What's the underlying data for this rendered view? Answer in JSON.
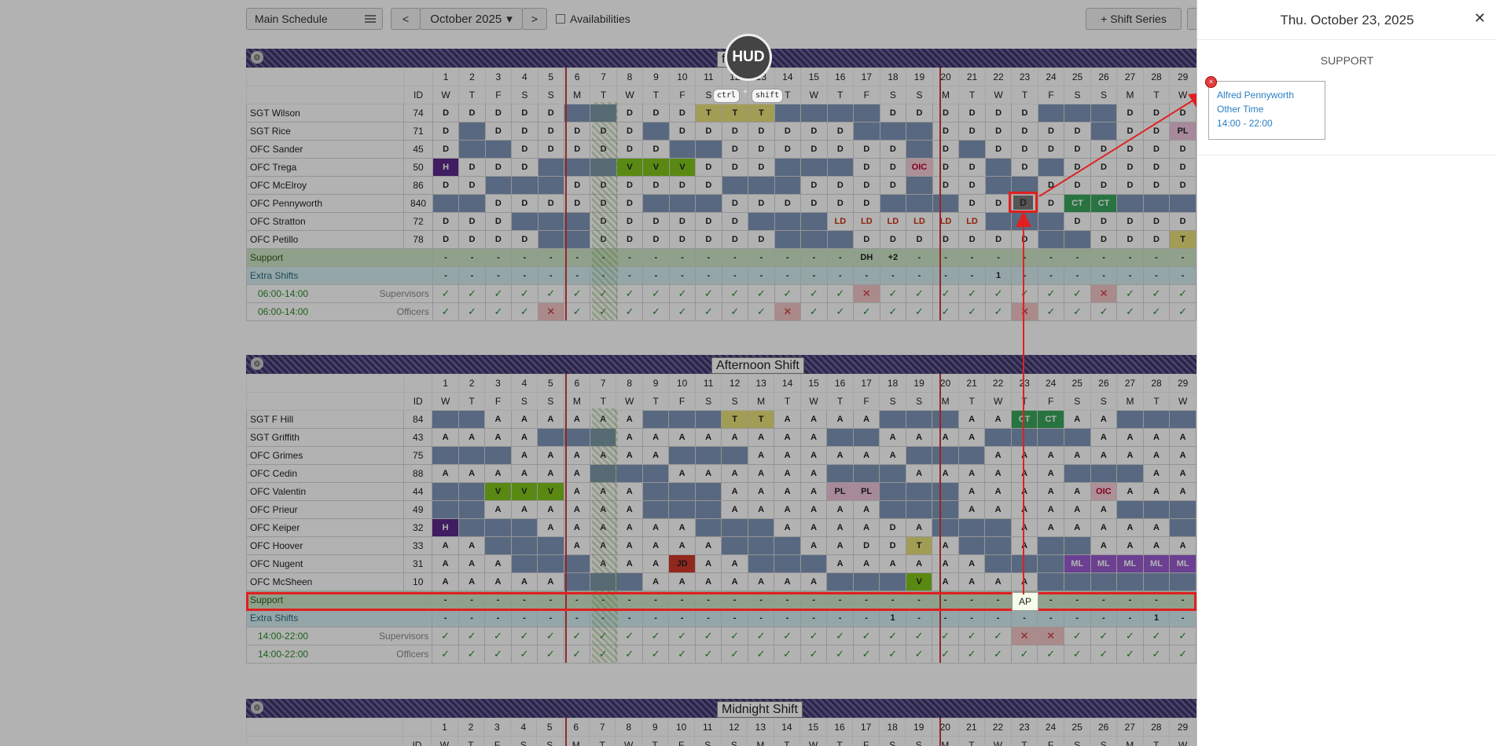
{
  "toolbar": {
    "schedule": "Main Schedule",
    "prev": "<",
    "month": "October 2025",
    "next": ">",
    "availabilities": "Availabilities",
    "shift_series": "+ Shift Series"
  },
  "hud": {
    "label": "HUD",
    "key1": "ctrl",
    "plus": "+",
    "key2": "shift"
  },
  "days": [
    "1",
    "2",
    "3",
    "4",
    "5",
    "6",
    "7",
    "8",
    "9",
    "10",
    "11",
    "12",
    "13",
    "14",
    "15",
    "16",
    "17",
    "18",
    "19",
    "20",
    "21",
    "22",
    "23",
    "24",
    "25",
    "26",
    "27",
    "28",
    "29"
  ],
  "weekdays": [
    "W",
    "T",
    "F",
    "S",
    "S",
    "M",
    "T",
    "W",
    "T",
    "F",
    "S",
    "S",
    "M",
    "T",
    "W",
    "T",
    "F",
    "S",
    "S",
    "M",
    "T",
    "W",
    "T",
    "F",
    "S",
    "S",
    "M",
    "T",
    "W"
  ],
  "id_header": "ID",
  "sections": [
    {
      "title": "ft",
      "time": "06:00-14:00",
      "rows": [
        {
          "name": "SGT Wilson",
          "id": "74",
          "cells": [
            "D",
            "D",
            "D",
            "D",
            "D",
            "",
            "",
            "D",
            "D",
            "D",
            "T",
            "T",
            "T",
            "",
            "",
            "",
            "",
            "D",
            "D",
            "D",
            "D",
            "D",
            "D",
            "",
            "",
            "",
            "D",
            "D",
            "D"
          ]
        },
        {
          "name": "SGT Rice",
          "id": "71",
          "cells": [
            "D",
            "",
            "D",
            "D",
            "D",
            "D",
            "D",
            "D",
            "",
            "D",
            "D",
            "D",
            "D",
            "D",
            "D",
            "D",
            "",
            "",
            "",
            "D",
            "D",
            "D",
            "D",
            "D",
            "D",
            "",
            "D",
            "D",
            "PL"
          ]
        },
        {
          "name": "OFC Sander",
          "id": "45",
          "cells": [
            "D",
            "",
            "",
            "D",
            "D",
            "D",
            "D",
            "D",
            "D",
            "",
            "",
            "D",
            "D",
            "D",
            "D",
            "D",
            "D",
            "D",
            "",
            "D",
            "",
            "D",
            "D",
            "D",
            "D",
            "D",
            "D",
            "D",
            "D"
          ]
        },
        {
          "name": "OFC Trega",
          "id": "50",
          "cells": [
            "H",
            "D",
            "D",
            "D",
            "",
            "",
            "",
            "V",
            "V",
            "V",
            "D",
            "D",
            "D",
            "",
            "",
            "",
            "D",
            "D",
            "OIC",
            "D",
            "D",
            "",
            "D",
            "",
            "D",
            "D",
            "D",
            "D",
            "D"
          ]
        },
        {
          "name": "OFC McElroy",
          "id": "86",
          "cells": [
            "D",
            "D",
            "",
            "",
            "",
            "D",
            "D",
            "D",
            "D",
            "D",
            "D",
            "",
            "",
            "",
            "D",
            "D",
            "D",
            "D",
            "",
            "D",
            "D",
            "",
            "",
            "D",
            "D",
            "D",
            "D",
            "D",
            "D"
          ]
        },
        {
          "name": "OFC Pennyworth",
          "id": "840",
          "cells": [
            "",
            "",
            "D",
            "D",
            "D",
            "D",
            "D",
            "D",
            "",
            "",
            "",
            "D",
            "D",
            "D",
            "D",
            "D",
            "D",
            "",
            "",
            "",
            "D",
            "D",
            "D",
            "D",
            "CT",
            "CT",
            "",
            "",
            ""
          ]
        },
        {
          "name": "OFC Stratton",
          "id": "72",
          "cells": [
            "D",
            "D",
            "D",
            "",
            "",
            "",
            "D",
            "D",
            "D",
            "D",
            "D",
            "D",
            "",
            "",
            "",
            "LD",
            "LD",
            "LD",
            "LD",
            "LD",
            "LD",
            "",
            "",
            "",
            "D",
            "D",
            "D",
            "D",
            "D"
          ]
        },
        {
          "name": "OFC Petillo",
          "id": "78",
          "cells": [
            "D",
            "D",
            "D",
            "D",
            "",
            "",
            "D",
            "D",
            "D",
            "D",
            "D",
            "D",
            "D",
            "",
            "",
            "",
            "D",
            "D",
            "D",
            "D",
            "D",
            "D",
            "D",
            "",
            "",
            "D",
            "D",
            "D",
            "T"
          ]
        }
      ],
      "support": [
        "-",
        "-",
        "-",
        "-",
        "-",
        "-",
        "-",
        "-",
        "-",
        "-",
        "-",
        "-",
        "-",
        "-",
        "-",
        "-",
        "DH",
        "+2",
        "-",
        "-",
        "-",
        "-",
        "-",
        "-",
        "-",
        "-",
        "-",
        "-",
        "-"
      ],
      "extra": [
        "-",
        "-",
        "-",
        "-",
        "-",
        "-",
        "-",
        "-",
        "-",
        "-",
        "-",
        "-",
        "-",
        "-",
        "-",
        "-",
        "-",
        "-",
        "-",
        "-",
        "-",
        "1",
        "-",
        "-",
        "-",
        "-",
        "-",
        "-",
        "-"
      ],
      "coverage": [
        {
          "time": "06:00-14:00",
          "role": "Supervisors",
          "cells": [
            "✓",
            "✓",
            "✓",
            "✓",
            "✓",
            "✓",
            "✓",
            "✓",
            "✓",
            "✓",
            "✓",
            "✓",
            "✓",
            "✓",
            "✓",
            "✓",
            "✕",
            "✓",
            "✓",
            "✓",
            "✓",
            "✓",
            "✓",
            "✓",
            "✓",
            "✕",
            "✓",
            "✓",
            "✓"
          ]
        },
        {
          "time": "06:00-14:00",
          "role": "Officers",
          "cells": [
            "✓",
            "✓",
            "✓",
            "✓",
            "✕",
            "✓",
            "✓",
            "✓",
            "✓",
            "✓",
            "✓",
            "✓",
            "✓",
            "✕",
            "✓",
            "✓",
            "✓",
            "✓",
            "✓",
            "✓",
            "✓",
            "✓",
            "✕",
            "✓",
            "✓",
            "✓",
            "✓",
            "✓",
            "✓"
          ]
        }
      ]
    },
    {
      "title": "Afternoon Shift",
      "time": "14:00-22:00",
      "rows": [
        {
          "name": "SGT F Hill",
          "id": "84",
          "cells": [
            "",
            "",
            "A",
            "A",
            "A",
            "A",
            "A",
            "A",
            "",
            "",
            "",
            "T",
            "T",
            "A",
            "A",
            "A",
            "A",
            "",
            "",
            "",
            "A",
            "A",
            "CT",
            "CT",
            "A",
            "A",
            "",
            "",
            ""
          ]
        },
        {
          "name": "SGT Griffith",
          "id": "43",
          "cells": [
            "A",
            "A",
            "A",
            "A",
            "",
            "",
            "",
            "A",
            "A",
            "A",
            "A",
            "A",
            "A",
            "A",
            "A",
            "",
            "",
            "A",
            "A",
            "A",
            "A",
            "",
            "",
            "",
            "",
            "A",
            "A",
            "A",
            "A"
          ]
        },
        {
          "name": "OFC Grimes",
          "id": "75",
          "cells": [
            "",
            "",
            "",
            "A",
            "A",
            "A",
            "A",
            "A",
            "A",
            "",
            "",
            "",
            "A",
            "A",
            "A",
            "A",
            "A",
            "A",
            "",
            "",
            "",
            "A",
            "A",
            "A",
            "A",
            "A",
            "A",
            "A",
            "A"
          ]
        },
        {
          "name": "OFC Cedin",
          "id": "88",
          "cells": [
            "A",
            "A",
            "A",
            "A",
            "A",
            "A",
            "",
            "",
            "",
            "A",
            "A",
            "A",
            "A",
            "A",
            "A",
            "",
            "",
            "",
            "A",
            "A",
            "A",
            "A",
            "A",
            "A",
            "",
            "",
            "",
            "A",
            "A"
          ]
        },
        {
          "name": "OFC Valentin",
          "id": "44",
          "cells": [
            "",
            "",
            "V",
            "V",
            "V",
            "A",
            "A",
            "A",
            "",
            "",
            "",
            "A",
            "A",
            "A",
            "A",
            "PL",
            "PL",
            "",
            "",
            "",
            "A",
            "A",
            "A",
            "A",
            "A",
            "OIC",
            "A",
            "A",
            "A"
          ]
        },
        {
          "name": "OFC Prieur",
          "id": "49",
          "cells": [
            "",
            "",
            "A",
            "A",
            "A",
            "A",
            "A",
            "A",
            "",
            "",
            "",
            "A",
            "A",
            "A",
            "A",
            "A",
            "A",
            "",
            "",
            "",
            "A",
            "A",
            "A",
            "A",
            "A",
            "A",
            "",
            "",
            ""
          ]
        },
        {
          "name": "OFC Keiper",
          "id": "32",
          "cells": [
            "H",
            "",
            "",
            "",
            "A",
            "A",
            "A",
            "A",
            "A",
            "A",
            "",
            "",
            "",
            "A",
            "A",
            "A",
            "A",
            "D",
            "A",
            "",
            "",
            "",
            "A",
            "A",
            "A",
            "A",
            "A",
            "A",
            ""
          ]
        },
        {
          "name": "OFC Hoover",
          "id": "33",
          "cells": [
            "A",
            "A",
            "",
            "",
            "",
            "A",
            "A",
            "A",
            "A",
            "A",
            "A",
            "",
            "",
            "",
            "A",
            "A",
            "D",
            "D",
            "T",
            "A",
            "",
            "",
            "A",
            "",
            "",
            "A",
            "A",
            "A",
            "A"
          ]
        },
        {
          "name": "OFC Nugent",
          "id": "31",
          "cells": [
            "A",
            "A",
            "A",
            "",
            "",
            "",
            "A",
            "A",
            "A",
            "JD",
            "A",
            "A",
            "",
            "",
            "",
            "A",
            "A",
            "A",
            "A",
            "A",
            "A",
            "",
            "",
            "",
            "ML",
            "ML",
            "ML",
            "ML",
            "ML"
          ]
        },
        {
          "name": "OFC McSheen",
          "id": "10",
          "cells": [
            "A",
            "A",
            "A",
            "A",
            "A",
            "",
            "",
            "",
            "A",
            "A",
            "A",
            "A",
            "A",
            "A",
            "A",
            "",
            "",
            "",
            "V",
            "A",
            "A",
            "A",
            "A",
            "",
            "",
            "",
            "",
            "",
            ""
          ]
        }
      ],
      "support": [
        "-",
        "-",
        "-",
        "-",
        "-",
        "-",
        "-",
        "-",
        "-",
        "-",
        "-",
        "-",
        "-",
        "-",
        "-",
        "-",
        "-",
        "-",
        "-",
        "-",
        "-",
        "-",
        "AP",
        "-",
        "-",
        "-",
        "-",
        "-",
        "-"
      ],
      "extra": [
        "-",
        "-",
        "-",
        "-",
        "-",
        "-",
        "-",
        "-",
        "-",
        "-",
        "-",
        "-",
        "-",
        "-",
        "-",
        "-",
        "-",
        "1",
        "-",
        "-",
        "-",
        "-",
        "-",
        "-",
        "-",
        "-",
        "-",
        "1",
        "-"
      ],
      "coverage": [
        {
          "time": "14:00-22:00",
          "role": "Supervisors",
          "cells": [
            "✓",
            "✓",
            "✓",
            "✓",
            "✓",
            "✓",
            "✓",
            "✓",
            "✓",
            "✓",
            "✓",
            "✓",
            "✓",
            "✓",
            "✓",
            "✓",
            "✓",
            "✓",
            "✓",
            "✓",
            "✓",
            "✓",
            "✕",
            "✕",
            "✓",
            "✓",
            "✓",
            "✓",
            "✓"
          ]
        },
        {
          "time": "14:00-22:00",
          "role": "Officers",
          "cells": [
            "✓",
            "✓",
            "✓",
            "✓",
            "✓",
            "✓",
            "✓",
            "✓",
            "✓",
            "✓",
            "✓",
            "✓",
            "✓",
            "✓",
            "✓",
            "✓",
            "✓",
            "✓",
            "✓",
            "✓",
            "✓",
            "✓",
            "✓",
            "✓",
            "✓",
            "✓",
            "✓",
            "✓",
            "✓"
          ]
        }
      ]
    },
    {
      "title": "Midnight Shift",
      "time": "",
      "rows": [],
      "support": [],
      "extra": [],
      "coverage": []
    }
  ],
  "labels": {
    "support": "Support",
    "extra": "Extra Shifts"
  },
  "selected_cell": {
    "value": "D"
  },
  "ap_tag": "AP",
  "panel": {
    "title": "Thu. October 23, 2025",
    "close": "✕",
    "section": "SUPPORT",
    "card": {
      "name": "Alfred Pennyworth",
      "type": "Other Time",
      "time": "14:00 - 22:00",
      "remove": "×"
    }
  },
  "colors": {
    "red_annotation": "#e02020",
    "empty_cell": "#7f96b8",
    "weekend_line": "#d23a3a"
  }
}
